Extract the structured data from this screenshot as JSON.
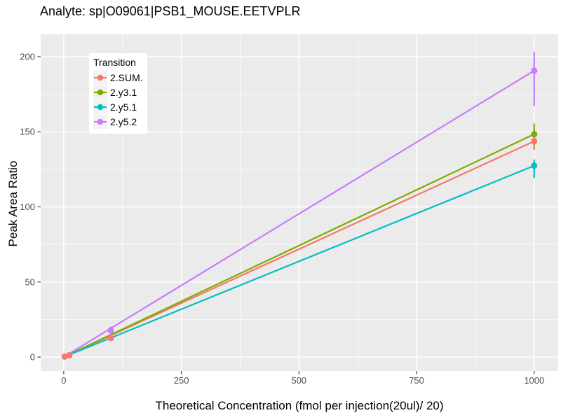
{
  "chart_data": {
    "type": "line",
    "title": "Analyte: sp|O09061|PSB1_MOUSE.EETVPLR",
    "xlabel": "Theoretical Concentration (fmol per injection(20ul)/ 20)",
    "ylabel": "Peak Area Ratio",
    "legend_title": "Transition",
    "legend_position": "inside-top-left",
    "grid": "on",
    "panel_bg": "#EBEBEB",
    "grid_color": "#FFFFFF",
    "tick_label_color": "#4D4D4D",
    "tick_mark_color": "#333333",
    "x_ticks": [
      0,
      250,
      500,
      750,
      1000
    ],
    "y_ticks": [
      0,
      50,
      100,
      150,
      200
    ],
    "x_minor": [
      125,
      375,
      625,
      875
    ],
    "y_minor": [
      25,
      75,
      125,
      175
    ],
    "xlim": [
      -49,
      1051
    ],
    "ylim": [
      -9.3,
      214.9
    ],
    "series": [
      {
        "name": "2.SUM.",
        "color": "#F8766D",
        "line": [
          [
            0,
            0
          ],
          [
            1000,
            143.7
          ]
        ],
        "points": [
          [
            2,
            0.3
          ],
          [
            12,
            1.2
          ],
          [
            100,
            12.6
          ],
          [
            1000,
            143.7
          ]
        ],
        "errorbars": [
          {
            "x": 1000,
            "low": 138,
            "high": 149
          }
        ]
      },
      {
        "name": "2.y3.1",
        "color": "#7CAE00",
        "line": [
          [
            0,
            0
          ],
          [
            1000,
            148.4
          ]
        ],
        "points": [
          [
            1000,
            148.4
          ]
        ],
        "errorbars": [
          {
            "x": 1000,
            "low": 141,
            "high": 155.4
          }
        ]
      },
      {
        "name": "2.y5.1",
        "color": "#00BFC4",
        "line": [
          [
            0,
            0
          ],
          [
            1000,
            127.4
          ]
        ],
        "points": [
          [
            1000,
            127.4
          ]
        ],
        "errorbars": [
          {
            "x": 1000,
            "low": 119.3,
            "high": 131.5
          }
        ]
      },
      {
        "name": "2.y5.2",
        "color": "#C77CFF",
        "line": [
          [
            0,
            0
          ],
          [
            1000,
            190.7
          ]
        ],
        "points": [
          [
            100,
            17.7
          ],
          [
            1000,
            190.7
          ]
        ],
        "errorbars": [
          {
            "x": 100,
            "low": 14.8,
            "high": 20.3
          },
          {
            "x": 1000,
            "low": 167,
            "high": 203.3
          }
        ]
      }
    ]
  }
}
